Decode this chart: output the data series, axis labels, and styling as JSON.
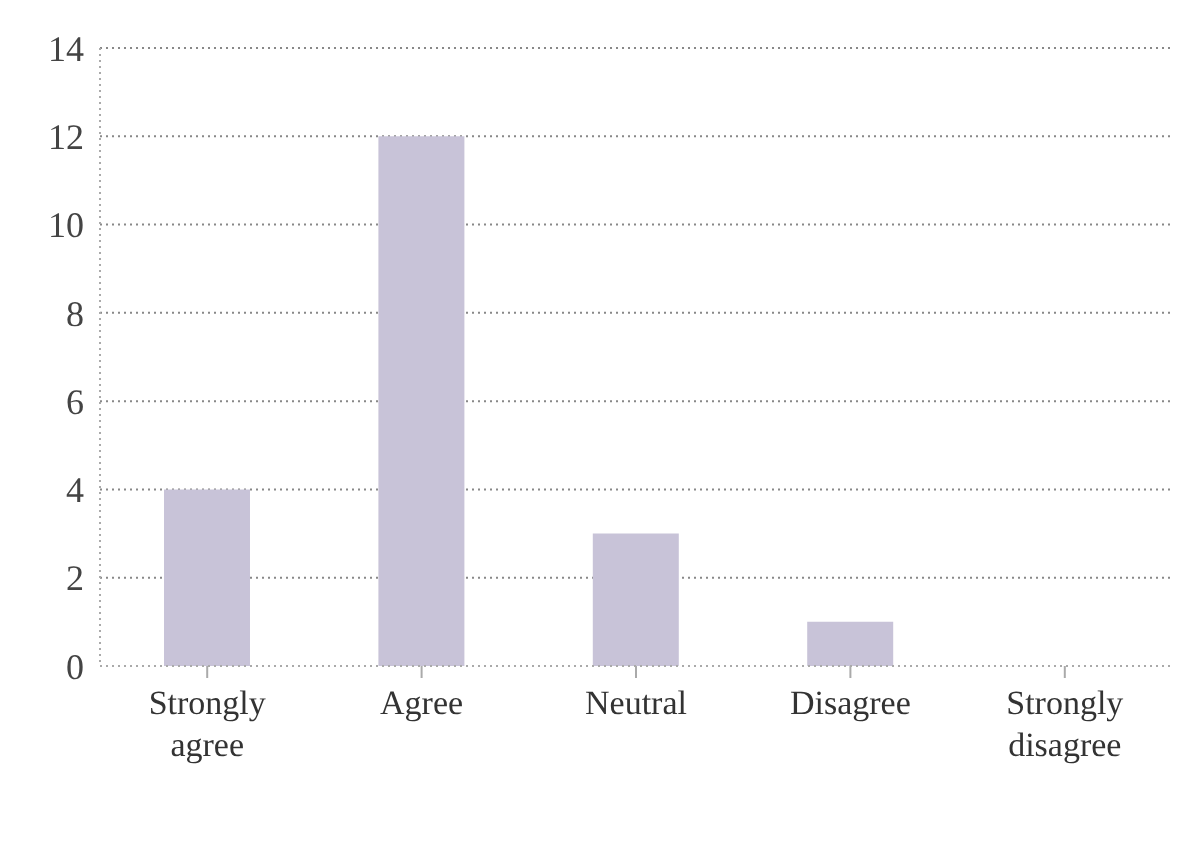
{
  "chart_data": {
    "type": "bar",
    "categories": [
      "Strongly agree",
      "Agree",
      "Neutral",
      "Disagree",
      "Strongly disagree"
    ],
    "values": [
      4,
      12,
      3,
      1,
      0
    ],
    "color": "#c8c3d8",
    "ylim": [
      0,
      14
    ],
    "yticks": [
      0,
      2,
      4,
      6,
      8,
      10,
      12,
      14
    ],
    "grid": "y",
    "legend": false
  }
}
